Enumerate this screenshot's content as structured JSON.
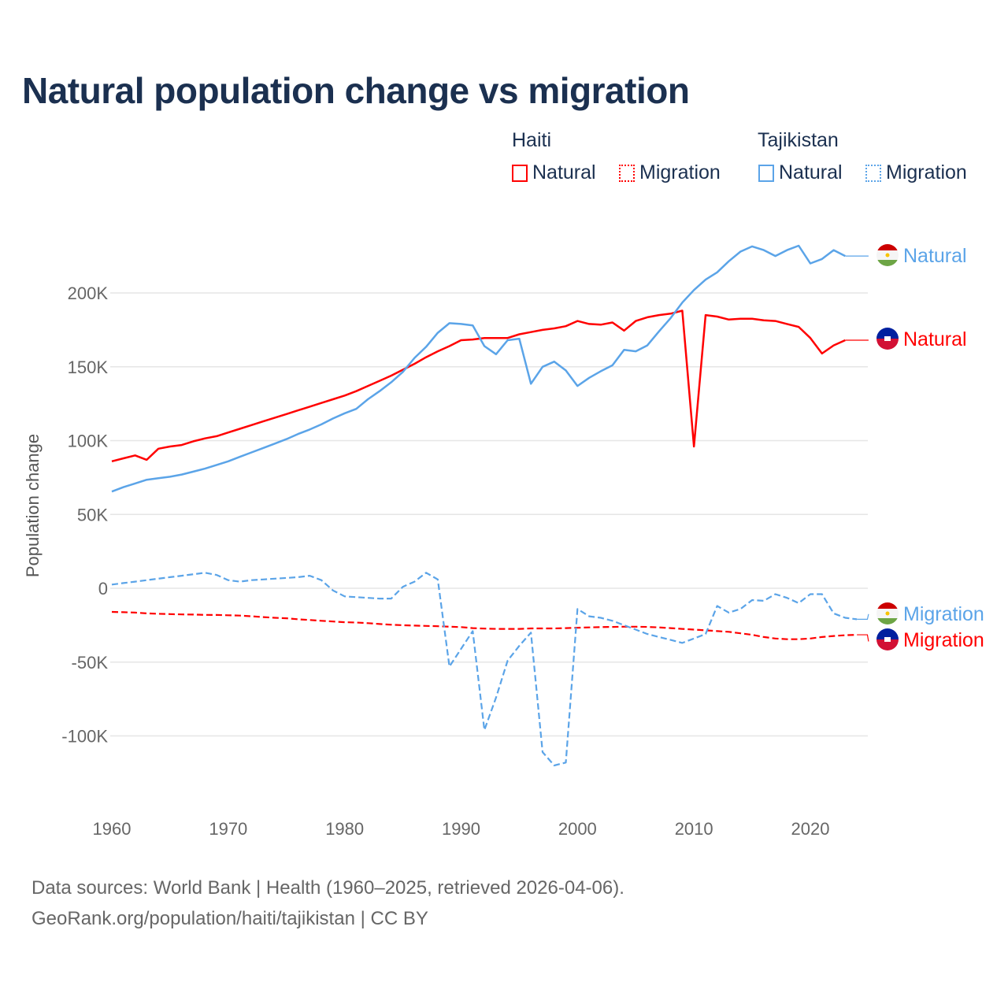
{
  "title": "Natural population change vs migration",
  "legend": {
    "groups": [
      {
        "name": "Haiti",
        "items": [
          "Natural",
          "Migration"
        ]
      },
      {
        "name": "Tajikistan",
        "items": [
          "Natural",
          "Migration"
        ]
      }
    ]
  },
  "colors": {
    "haiti": "#ff0000",
    "tajikistan": "#5ba4e8",
    "title": "#1b3050"
  },
  "footer": {
    "line1": "Data sources: World Bank | Health (1960–2025, retrieved 2026-04-06).",
    "line2": "GeoRank.org/population/haiti/tajikistan | CC BY"
  },
  "chart_data": {
    "type": "line",
    "title": "Natural population change vs migration",
    "xlabel": "",
    "ylabel": "Population change",
    "xlim": [
      1960,
      2025
    ],
    "ylim": [
      -135000,
      245000
    ],
    "x_ticks": [
      "1960",
      "1970",
      "1980",
      "1990",
      "2000",
      "2010",
      "2020"
    ],
    "y_ticks": [
      {
        "value": 200000,
        "label": "200K"
      },
      {
        "value": 150000,
        "label": "150K"
      },
      {
        "value": 100000,
        "label": "100K"
      },
      {
        "value": 50000,
        "label": "50K"
      },
      {
        "value": 0,
        "label": "0"
      },
      {
        "value": -50000,
        "label": "-50K"
      },
      {
        "value": -100000,
        "label": "-100K"
      }
    ],
    "grid": true,
    "x_start": 1960,
    "series": [
      {
        "name": "Haiti Natural",
        "country": "Haiti",
        "label": "Natural",
        "style": "solid",
        "color": "#ff0000",
        "values_k": [
          86,
          88,
          90,
          87,
          94.5,
          96,
          97,
          99.5,
          101.5,
          103,
          105.5,
          108,
          110.5,
          113,
          115.5,
          118,
          120.5,
          123,
          125.5,
          128,
          130.5,
          133.5,
          137,
          140.5,
          144,
          148,
          152,
          156.5,
          160.5,
          164,
          168,
          168.5,
          169.5,
          169.5,
          169.5,
          172,
          173.5,
          175,
          176,
          177.5,
          181,
          179,
          178.5,
          180,
          174.5,
          181,
          183.5,
          185,
          186,
          188,
          96,
          185,
          184,
          182,
          182.5,
          182.5,
          181.5,
          181,
          179,
          177,
          169.5,
          159,
          164.5,
          168
        ],
        "extend_to": 2025
      },
      {
        "name": "Haiti Migration",
        "country": "Haiti",
        "label": "Migration",
        "style": "dashed",
        "color": "#ff0000",
        "values_k": [
          -16,
          -16.2,
          -16.5,
          -17,
          -17.3,
          -17.5,
          -17.7,
          -17.8,
          -18,
          -18.1,
          -18.3,
          -18.5,
          -19,
          -19.5,
          -20,
          -20.3,
          -21,
          -21.5,
          -22,
          -22.5,
          -23,
          -23.2,
          -23.6,
          -24.2,
          -24.7,
          -25,
          -25.3,
          -25.5,
          -25.7,
          -26,
          -26.3,
          -27,
          -27.3,
          -27.5,
          -27.5,
          -27.5,
          -27.2,
          -27.2,
          -27.2,
          -27,
          -26.7,
          -26.5,
          -26.3,
          -26.2,
          -26,
          -26,
          -26.2,
          -26.5,
          -27,
          -27.5,
          -28,
          -28.5,
          -29,
          -29.5,
          -30.5,
          -31.5,
          -33,
          -34,
          -34.5,
          -34.5,
          -34,
          -33,
          -32.3,
          -31.8,
          -31.5
        ],
        "extend_to": 2025,
        "extend_value_k": -36
      },
      {
        "name": "Tajikistan Natural",
        "country": "Tajikistan",
        "label": "Natural",
        "style": "solid",
        "color": "#5ba4e8",
        "values_k": [
          65.5,
          68.5,
          71,
          73.5,
          74.5,
          75.5,
          77,
          79,
          81,
          83.5,
          86,
          89,
          92,
          95,
          98,
          101,
          104.5,
          107.5,
          111,
          115,
          118.5,
          121.5,
          128,
          133.5,
          139.5,
          146.5,
          156,
          163.5,
          173,
          179.5,
          179,
          178,
          164,
          158.5,
          168,
          169,
          138.5,
          150,
          153.5,
          147.5,
          137,
          142.5,
          147,
          151,
          161.5,
          160.5,
          164.5,
          174,
          183,
          193.5,
          202,
          209,
          214,
          221.5,
          228,
          231.5,
          229,
          225,
          229,
          232,
          220,
          223,
          229,
          225
        ],
        "extend_to": 2025
      },
      {
        "name": "Tajikistan Migration",
        "country": "Tajikistan",
        "label": "Migration",
        "style": "dashed",
        "color": "#5ba4e8",
        "values_k": [
          2.5,
          3.5,
          4.5,
          5.5,
          6.5,
          7.5,
          8.5,
          9.5,
          10.5,
          9,
          5.5,
          4.5,
          5.5,
          6,
          6.5,
          7,
          7.5,
          8.5,
          5.5,
          -1.5,
          -5.5,
          -6,
          -6.5,
          -7,
          -7,
          1,
          4.5,
          10.5,
          6,
          -53,
          -41,
          -29,
          -96,
          -74,
          -49,
          -39,
          -30,
          -111,
          -120,
          -118,
          -14,
          -19,
          -20,
          -22,
          -25,
          -28,
          -31,
          -33,
          -35,
          -37,
          -34,
          -31,
          -12,
          -16.5,
          -14,
          -8,
          -8.5,
          -4,
          -6.5,
          -10,
          -4,
          -4,
          -17,
          -20,
          -21
        ],
        "extend_to": 2025,
        "extend_value_k": -17.5
      }
    ],
    "end_labels": [
      {
        "text": "Natural",
        "country": "Tajikistan"
      },
      {
        "text": "Natural",
        "country": "Haiti"
      },
      {
        "text": "Migration",
        "country": "Tajikistan"
      },
      {
        "text": "Migration",
        "country": "Haiti"
      }
    ]
  }
}
